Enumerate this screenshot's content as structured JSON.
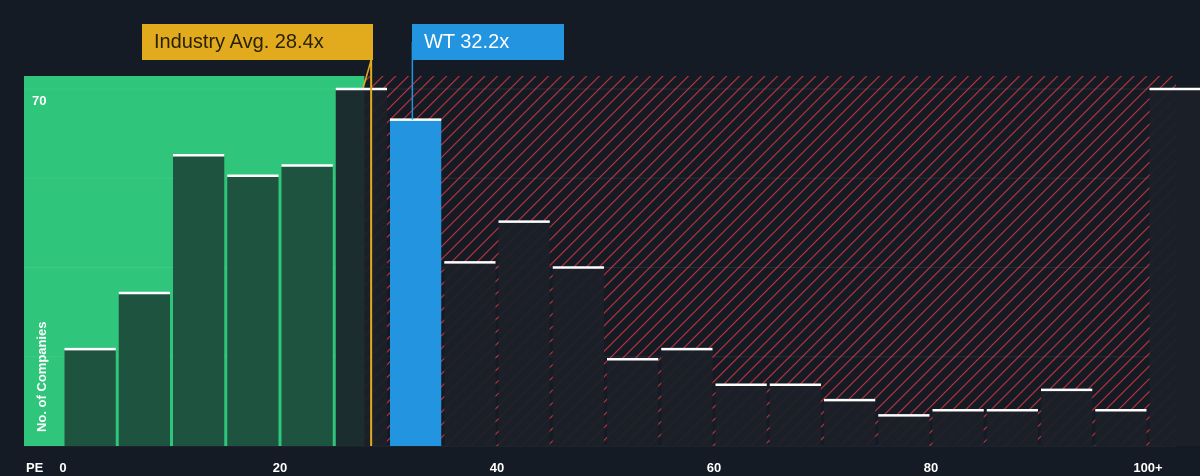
{
  "chart_data": {
    "type": "bar",
    "title": "",
    "xlabel": "PE",
    "ylabel": "No. of Companies",
    "x_ticks": [
      "0",
      "20",
      "40",
      "60",
      "80",
      "100+"
    ],
    "y_ticks": [
      "70"
    ],
    "xlim": [
      -5,
      105
    ],
    "ylim": [
      0,
      70
    ],
    "bin_width": 5,
    "bins": [
      {
        "start": 0,
        "value": 19
      },
      {
        "start": 5,
        "value": 30
      },
      {
        "start": 10,
        "value": 57
      },
      {
        "start": 15,
        "value": 53
      },
      {
        "start": 20,
        "value": 55
      },
      {
        "start": 25,
        "value": 70
      },
      {
        "start": 30,
        "value": 64
      },
      {
        "start": 35,
        "value": 36
      },
      {
        "start": 40,
        "value": 44
      },
      {
        "start": 45,
        "value": 35
      },
      {
        "start": 50,
        "value": 17
      },
      {
        "start": 55,
        "value": 19
      },
      {
        "start": 60,
        "value": 12
      },
      {
        "start": 65,
        "value": 12
      },
      {
        "start": 70,
        "value": 9
      },
      {
        "start": 75,
        "value": 6
      },
      {
        "start": 80,
        "value": 7
      },
      {
        "start": 85,
        "value": 7
      },
      {
        "start": 90,
        "value": 11
      },
      {
        "start": 95,
        "value": 7
      },
      {
        "start": 100,
        "value": 70
      }
    ],
    "highlight_bin_start": 30,
    "industry_avg": {
      "label": "Industry Avg. 28.4x",
      "value": 28.4
    },
    "company": {
      "label": "WT 32.2x",
      "value": 32.2
    },
    "fair_zone_end": 27.5,
    "colors": {
      "background": "#151b24",
      "fair_zone": "#2fc57a",
      "bar_fair": "#1d4a3a",
      "bar_expensive": "#1b2029",
      "hatch": "#c2333c",
      "highlight": "#2394e0",
      "industry": "#e2ab1d",
      "bar_top": "#ffffff"
    },
    "grid": true
  }
}
